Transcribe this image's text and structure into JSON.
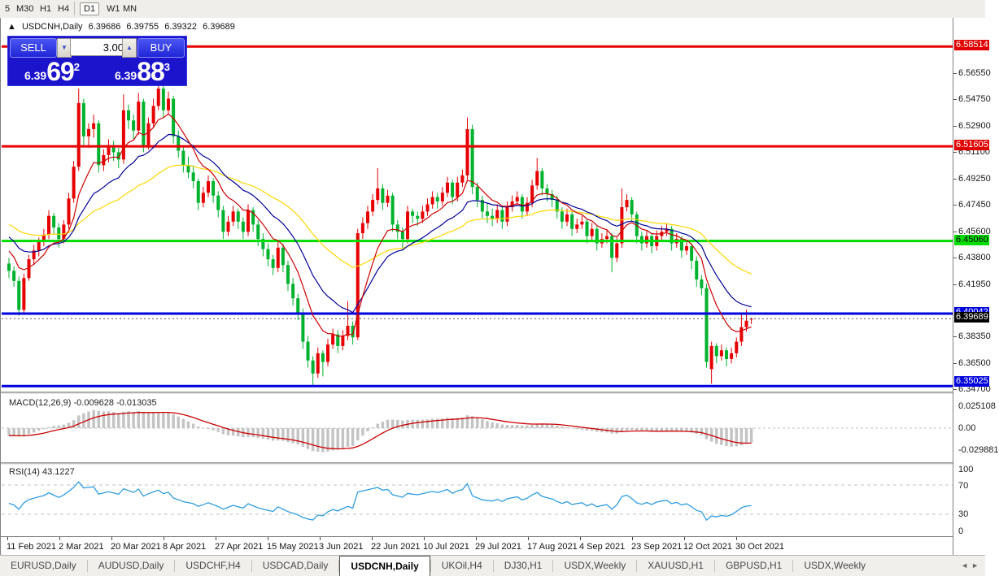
{
  "toolbar": {
    "items": [
      {
        "label": "5",
        "x": 2,
        "active": false
      },
      {
        "label": "M30",
        "x": 16,
        "active": false
      },
      {
        "label": "H1",
        "x": 45,
        "active": false
      },
      {
        "label": "H4",
        "x": 67,
        "active": false
      },
      {
        "label": "D1",
        "x": 98,
        "active": true
      },
      {
        "label": "W1",
        "x": 127,
        "active": false
      },
      {
        "label": "MN",
        "x": 147,
        "active": false
      }
    ],
    "separator_x": 91
  },
  "chart_header": {
    "symbol": "USDCNH,Daily",
    "open": "6.39686",
    "high": "6.39755",
    "low": "6.39322",
    "close": "6.39689"
  },
  "trade_panel": {
    "sell_label": "SELL",
    "buy_label": "BUY",
    "volume": "3.00",
    "sell_price_main": "6.39",
    "sell_price_big": "69",
    "sell_price_sup": "2",
    "buy_price_main": "6.39",
    "buy_price_big": "88",
    "buy_price_sup": "3",
    "down_arrow": "▼",
    "up_arrow": "▲"
  },
  "price_axis": {
    "ticks": [
      "6.56550",
      "6.54750",
      "6.52900",
      "6.51100",
      "6.49250",
      "6.47450",
      "6.45600",
      "6.43800",
      "6.41950",
      "6.38350",
      "6.36500",
      "6.34700"
    ],
    "levels": [
      {
        "label": "6.58514",
        "price": 6.58514,
        "bg": "#e00000",
        "fg": "#ffffff"
      },
      {
        "label": "6.51605",
        "price": 6.51605,
        "bg": "#e00000",
        "fg": "#ffffff"
      },
      {
        "label": "6.45060",
        "price": 6.4506,
        "bg": "#00dd00",
        "fg": "#000000"
      },
      {
        "label": "6.40042",
        "price": 6.40042,
        "bg": "#0000dd",
        "fg": "#ffffff"
      },
      {
        "label": "6.39689",
        "price": 6.39689,
        "bg": "#000000",
        "fg": "#ffffff",
        "bid": true
      },
      {
        "label": "6.35025",
        "price": 6.35025,
        "bg": "#0000dd",
        "fg": "#ffffff"
      }
    ],
    "macd_ticks": [
      {
        "label": "0.025108",
        "y": 500
      },
      {
        "label": "0.00",
        "y": 527
      },
      {
        "label": "-0.029881",
        "y": 554
      }
    ],
    "rsi_ticks": [
      {
        "label": "100",
        "y": 578
      },
      {
        "label": "70",
        "y": 598
      },
      {
        "label": "30",
        "y": 633
      },
      {
        "label": "0",
        "y": 654
      }
    ]
  },
  "date_axis": {
    "labels": [
      "11 Feb 2021",
      "2 Mar 2021",
      "20 Mar 2021",
      "8 Apr 2021",
      "27 Apr 2021",
      "15 May 2021",
      "3 Jun 2021",
      "22 Jun 2021",
      "10 Jul 2021",
      "29 Jul 2021",
      "17 Aug 2021",
      "4 Sep 2021",
      "23 Sep 2021",
      "12 Oct 2021",
      "30 Oct 2021"
    ]
  },
  "macd_panel": {
    "name": "MACD(12,26,9)",
    "values": "-0.009628 -0.013035"
  },
  "rsi_panel": {
    "name": "RSI(14)",
    "value": "43.1227"
  },
  "tabs": {
    "items": [
      "EURUSD,Daily",
      "AUDUSD,Daily",
      "USDCHF,H4",
      "USDCAD,Daily",
      "USDCNH,Daily",
      "UKOil,H4",
      "DJ30,H1",
      "USDX,Weekly",
      "XAUUSD,H1",
      "GBPUSD,H1",
      "USDX,Weekly"
    ],
    "active_index": 4,
    "left_arrow": "◄",
    "right_arrow": "►"
  },
  "colors": {
    "bull_candle": "#e60000",
    "bear_candle": "#00b22d",
    "ma_fast": "#cc0000",
    "ma_mid": "#000099",
    "ma_slow": "#ffd700",
    "hline_red": "#e60000",
    "hline_green": "#00dd00",
    "hline_blue": "#0000e0",
    "macd_hist": "#c4c4c4",
    "macd_signal": "#cc0000",
    "rsi_line": "#2e9ce0"
  },
  "chart_data": {
    "type": "candlestick",
    "symbol": "USDCNH",
    "timeframe": "Daily",
    "title": "USDCNH,Daily",
    "ylim": [
      6.345,
      6.6
    ],
    "grid": false,
    "hlines": [
      {
        "price": 6.58514,
        "color": "#e60000",
        "width": 3
      },
      {
        "price": 6.51605,
        "color": "#e60000",
        "width": 3
      },
      {
        "price": 6.4506,
        "color": "#00dd00",
        "width": 3
      },
      {
        "price": 6.40042,
        "color": "#0000e0",
        "width": 3
      },
      {
        "price": 6.35025,
        "color": "#0000e0",
        "width": 3
      }
    ],
    "bid_line": 6.39689,
    "moving_averages": [
      {
        "name": "fast",
        "color": "#cc0000",
        "period": 9,
        "seed": 6.447
      },
      {
        "name": "mid",
        "color": "#000099",
        "period": 19,
        "seed": 6.456
      },
      {
        "name": "slow",
        "color": "#ffd700",
        "period": 43,
        "seed": 6.4635
      }
    ],
    "indicators": {
      "macd": {
        "fast": 12,
        "slow": 26,
        "signal": 9,
        "value": -0.009628,
        "signal_value": -0.013035,
        "axis_max": 0.025108,
        "axis_min": -0.029881
      },
      "rsi": {
        "period": 14,
        "value": 43.1227,
        "levels": [
          70,
          30
        ]
      }
    },
    "candles": [
      [
        6.435,
        6.439,
        6.425,
        6.43
      ],
      [
        6.43,
        6.433,
        6.419,
        6.423
      ],
      [
        6.423,
        6.426,
        6.399,
        6.403
      ],
      [
        6.403,
        6.428,
        6.401,
        6.425
      ],
      [
        6.425,
        6.441,
        6.423,
        6.438
      ],
      [
        6.438,
        6.448,
        6.434,
        6.444
      ],
      [
        6.444,
        6.453,
        6.44,
        6.45
      ],
      [
        6.45,
        6.459,
        6.447,
        6.455
      ],
      [
        6.455,
        6.472,
        6.452,
        6.468
      ],
      [
        6.468,
        6.47,
        6.455,
        6.46
      ],
      [
        6.46,
        6.463,
        6.446,
        6.452
      ],
      [
        6.452,
        6.465,
        6.449,
        6.462
      ],
      [
        6.462,
        6.484,
        6.459,
        6.48
      ],
      [
        6.48,
        6.506,
        6.477,
        6.502
      ],
      [
        6.502,
        6.556,
        6.499,
        6.546
      ],
      [
        6.546,
        6.549,
        6.517,
        6.523
      ],
      [
        6.523,
        6.532,
        6.515,
        6.528
      ],
      [
        6.528,
        6.538,
        6.522,
        6.532
      ],
      [
        6.532,
        6.534,
        6.498,
        6.503
      ],
      [
        6.503,
        6.514,
        6.499,
        6.51
      ],
      [
        6.51,
        6.521,
        6.505,
        6.517
      ],
      [
        6.517,
        6.52,
        6.506,
        6.512
      ],
      [
        6.512,
        6.515,
        6.501,
        6.507
      ],
      [
        6.507,
        6.552,
        6.504,
        6.541
      ],
      [
        6.541,
        6.545,
        6.528,
        6.534
      ],
      [
        6.534,
        6.538,
        6.521,
        6.527
      ],
      [
        6.527,
        6.553,
        6.524,
        6.547
      ],
      [
        6.547,
        6.549,
        6.512,
        6.517
      ],
      [
        6.517,
        6.536,
        6.514,
        6.532
      ],
      [
        6.532,
        6.549,
        6.529,
        6.544
      ],
      [
        6.544,
        6.571,
        6.541,
        6.556
      ],
      [
        6.556,
        6.56,
        6.536,
        6.541
      ],
      [
        6.541,
        6.554,
        6.538,
        6.549
      ],
      [
        6.549,
        6.551,
        6.518,
        6.523
      ],
      [
        6.523,
        6.527,
        6.508,
        6.513
      ],
      [
        6.513,
        6.516,
        6.498,
        6.503
      ],
      [
        6.503,
        6.509,
        6.494,
        6.498
      ],
      [
        6.498,
        6.503,
        6.487,
        6.492
      ],
      [
        6.492,
        6.494,
        6.472,
        6.477
      ],
      [
        6.477,
        6.488,
        6.474,
        6.484
      ],
      [
        6.484,
        6.496,
        6.481,
        6.492
      ],
      [
        6.492,
        6.494,
        6.477,
        6.482
      ],
      [
        6.482,
        6.485,
        6.467,
        6.472
      ],
      [
        6.472,
        6.475,
        6.452,
        6.457
      ],
      [
        6.457,
        6.468,
        6.454,
        6.464
      ],
      [
        6.464,
        6.475,
        6.461,
        6.471
      ],
      [
        6.471,
        6.473,
        6.459,
        6.464
      ],
      [
        6.464,
        6.467,
        6.452,
        6.457
      ],
      [
        6.457,
        6.476,
        6.454,
        6.472
      ],
      [
        6.472,
        6.474,
        6.457,
        6.462
      ],
      [
        6.462,
        6.465,
        6.447,
        6.452
      ],
      [
        6.452,
        6.456,
        6.44,
        6.445
      ],
      [
        6.445,
        6.449,
        6.433,
        6.438
      ],
      [
        6.438,
        6.441,
        6.427,
        6.432
      ],
      [
        6.432,
        6.45,
        6.429,
        6.446
      ],
      [
        6.446,
        6.449,
        6.429,
        6.434
      ],
      [
        6.434,
        6.437,
        6.416,
        6.421
      ],
      [
        6.421,
        6.425,
        6.406,
        6.411
      ],
      [
        6.411,
        6.414,
        6.396,
        6.401
      ],
      [
        6.401,
        6.404,
        6.376,
        6.381
      ],
      [
        6.381,
        6.385,
        6.363,
        6.368
      ],
      [
        6.368,
        6.371,
        6.351,
        6.359
      ],
      [
        6.359,
        6.377,
        6.356,
        6.373
      ],
      [
        6.373,
        6.375,
        6.357,
        6.367
      ],
      [
        6.367,
        6.383,
        6.364,
        6.379
      ],
      [
        6.379,
        6.39,
        6.376,
        6.386
      ],
      [
        6.386,
        6.389,
        6.373,
        6.378
      ],
      [
        6.378,
        6.389,
        6.375,
        6.385
      ],
      [
        6.385,
        6.409,
        6.382,
        6.392
      ],
      [
        6.392,
        6.395,
        6.379,
        6.384
      ],
      [
        6.384,
        6.459,
        6.382,
        6.456
      ],
      [
        6.456,
        6.467,
        6.452,
        6.463
      ],
      [
        6.463,
        6.475,
        6.459,
        6.471
      ],
      [
        6.471,
        6.483,
        6.468,
        6.479
      ],
      [
        6.479,
        6.501,
        6.476,
        6.487
      ],
      [
        6.487,
        6.49,
        6.472,
        6.477
      ],
      [
        6.477,
        6.486,
        6.474,
        6.482
      ],
      [
        6.482,
        6.484,
        6.457,
        6.462
      ],
      [
        6.462,
        6.465,
        6.452,
        6.457
      ],
      [
        6.457,
        6.46,
        6.444,
        6.452
      ],
      [
        6.452,
        6.475,
        6.449,
        6.471
      ],
      [
        6.471,
        6.473,
        6.463,
        6.468
      ],
      [
        6.468,
        6.471,
        6.461,
        6.466
      ],
      [
        6.466,
        6.475,
        6.463,
        6.471
      ],
      [
        6.471,
        6.48,
        6.468,
        6.476
      ],
      [
        6.476,
        6.485,
        6.473,
        6.481
      ],
      [
        6.481,
        6.484,
        6.473,
        6.478
      ],
      [
        6.478,
        6.488,
        6.475,
        6.484
      ],
      [
        6.484,
        6.495,
        6.481,
        6.491
      ],
      [
        6.491,
        6.493,
        6.476,
        6.481
      ],
      [
        6.481,
        6.495,
        6.478,
        6.491
      ],
      [
        6.491,
        6.5,
        6.488,
        6.496
      ],
      [
        6.496,
        6.536,
        6.493,
        6.528
      ],
      [
        6.528,
        6.531,
        6.483,
        6.488
      ],
      [
        6.488,
        6.491,
        6.474,
        6.479
      ],
      [
        6.479,
        6.482,
        6.466,
        6.471
      ],
      [
        6.471,
        6.477,
        6.463,
        6.468
      ],
      [
        6.468,
        6.473,
        6.461,
        6.466
      ],
      [
        6.466,
        6.476,
        6.463,
        6.472
      ],
      [
        6.472,
        6.474,
        6.459,
        6.464
      ],
      [
        6.464,
        6.478,
        6.461,
        6.474
      ],
      [
        6.474,
        6.482,
        6.471,
        6.478
      ],
      [
        6.478,
        6.485,
        6.475,
        6.481
      ],
      [
        6.481,
        6.483,
        6.466,
        6.471
      ],
      [
        6.471,
        6.481,
        6.468,
        6.477
      ],
      [
        6.477,
        6.493,
        6.474,
        6.489
      ],
      [
        6.489,
        6.508,
        6.486,
        6.499
      ],
      [
        6.499,
        6.501,
        6.482,
        6.487
      ],
      [
        6.487,
        6.49,
        6.478,
        6.483
      ],
      [
        6.483,
        6.486,
        6.474,
        6.479
      ],
      [
        6.479,
        6.482,
        6.466,
        6.471
      ],
      [
        6.471,
        6.474,
        6.459,
        6.464
      ],
      [
        6.464,
        6.473,
        6.461,
        6.469
      ],
      [
        6.469,
        6.471,
        6.454,
        6.459
      ],
      [
        6.459,
        6.466,
        6.456,
        6.462
      ],
      [
        6.462,
        6.468,
        6.459,
        6.464
      ],
      [
        6.464,
        6.466,
        6.449,
        6.454
      ],
      [
        6.454,
        6.463,
        6.451,
        6.459
      ],
      [
        6.459,
        6.461,
        6.444,
        6.449
      ],
      [
        6.449,
        6.456,
        6.446,
        6.452
      ],
      [
        6.452,
        6.458,
        6.449,
        6.454
      ],
      [
        6.454,
        6.456,
        6.429,
        6.439
      ],
      [
        6.439,
        6.453,
        6.436,
        6.449
      ],
      [
        6.449,
        6.487,
        6.446,
        6.474
      ],
      [
        6.474,
        6.483,
        6.471,
        6.479
      ],
      [
        6.479,
        6.481,
        6.464,
        6.469
      ],
      [
        6.469,
        6.471,
        6.449,
        6.454
      ],
      [
        6.454,
        6.457,
        6.444,
        6.449
      ],
      [
        6.449,
        6.458,
        6.446,
        6.454
      ],
      [
        6.454,
        6.456,
        6.442,
        6.447
      ],
      [
        6.447,
        6.458,
        6.444,
        6.454
      ],
      [
        6.454,
        6.461,
        6.451,
        6.457
      ],
      [
        6.457,
        6.463,
        6.454,
        6.459
      ],
      [
        6.459,
        6.461,
        6.444,
        6.449
      ],
      [
        6.449,
        6.456,
        6.446,
        6.452
      ],
      [
        6.452,
        6.454,
        6.439,
        6.444
      ],
      [
        6.444,
        6.451,
        6.441,
        6.447
      ],
      [
        6.447,
        6.449,
        6.431,
        6.437
      ],
      [
        6.437,
        6.44,
        6.419,
        6.424
      ],
      [
        6.424,
        6.427,
        6.413,
        6.418
      ],
      [
        6.418,
        6.421,
        6.363,
        6.367
      ],
      [
        6.362,
        6.381,
        6.352,
        6.378
      ],
      [
        6.378,
        6.38,
        6.366,
        6.371
      ],
      [
        6.371,
        6.379,
        6.368,
        6.375
      ],
      [
        6.375,
        6.377,
        6.364,
        6.369
      ],
      [
        6.369,
        6.377,
        6.366,
        6.373
      ],
      [
        6.373,
        6.384,
        6.37,
        6.381
      ],
      [
        6.381,
        6.401,
        6.378,
        6.391
      ],
      [
        6.391,
        6.403,
        6.388,
        6.3955
      ],
      [
        6.3969,
        6.3976,
        6.3932,
        6.3969
      ]
    ]
  }
}
